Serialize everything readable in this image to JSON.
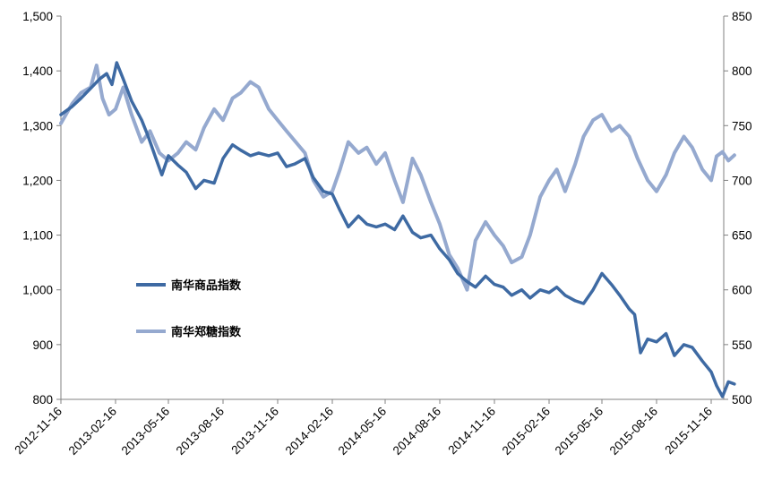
{
  "chart_data": {
    "type": "line",
    "title": "",
    "xlabel": "",
    "ylabel": "",
    "x_tick_labels": [
      "2012-11-16",
      "2013-02-16",
      "2013-05-16",
      "2013-08-16",
      "2013-11-16",
      "2014-02-16",
      "2014-05-16",
      "2014-08-16",
      "2014-11-16",
      "2015-02-16",
      "2015-05-16",
      "2015-08-16",
      "2015-11-16"
    ],
    "left_axis": {
      "ylim": [
        800,
        1500
      ],
      "ticks": [
        "800",
        "900",
        "1,000",
        "1,100",
        "1,200",
        "1,300",
        "1,400",
        "1,500"
      ]
    },
    "right_axis": {
      "ylim": [
        500,
        850
      ],
      "ticks": [
        "500",
        "550",
        "600",
        "650",
        "700",
        "750",
        "800",
        "850"
      ]
    },
    "grid": false,
    "legend_placement": "center-left",
    "series": [
      {
        "name": "南华商品指数",
        "axis": "left",
        "color": "#3E6AA3",
        "points": [
          [
            "2012-11-16",
            1320
          ],
          [
            "2012-12-05",
            1335
          ],
          [
            "2012-12-20",
            1350
          ],
          [
            "2013-01-05",
            1368
          ],
          [
            "2013-01-20",
            1385
          ],
          [
            "2013-02-01",
            1395
          ],
          [
            "2013-02-10",
            1375
          ],
          [
            "2013-02-18",
            1415
          ],
          [
            "2013-03-01",
            1385
          ],
          [
            "2013-03-15",
            1345
          ],
          [
            "2013-04-01",
            1310
          ],
          [
            "2013-04-12",
            1280
          ],
          [
            "2013-04-25",
            1240
          ],
          [
            "2013-05-05",
            1210
          ],
          [
            "2013-05-16",
            1245
          ],
          [
            "2013-06-01",
            1228
          ],
          [
            "2013-06-15",
            1215
          ],
          [
            "2013-07-01",
            1185
          ],
          [
            "2013-07-15",
            1200
          ],
          [
            "2013-08-01",
            1195
          ],
          [
            "2013-08-16",
            1240
          ],
          [
            "2013-09-01",
            1265
          ],
          [
            "2013-09-15",
            1255
          ],
          [
            "2013-10-01",
            1245
          ],
          [
            "2013-10-15",
            1250
          ],
          [
            "2013-11-01",
            1245
          ],
          [
            "2013-11-16",
            1250
          ],
          [
            "2013-12-01",
            1225
          ],
          [
            "2013-12-15",
            1230
          ],
          [
            "2014-01-01",
            1240
          ],
          [
            "2014-01-15",
            1205
          ],
          [
            "2014-02-01",
            1180
          ],
          [
            "2014-02-16",
            1175
          ],
          [
            "2014-03-01",
            1145
          ],
          [
            "2014-03-15",
            1115
          ],
          [
            "2014-04-01",
            1135
          ],
          [
            "2014-04-15",
            1120
          ],
          [
            "2014-05-01",
            1115
          ],
          [
            "2014-05-16",
            1120
          ],
          [
            "2014-06-01",
            1110
          ],
          [
            "2014-06-15",
            1135
          ],
          [
            "2014-07-01",
            1105
          ],
          [
            "2014-07-15",
            1095
          ],
          [
            "2014-08-01",
            1100
          ],
          [
            "2014-08-16",
            1075
          ],
          [
            "2014-09-01",
            1055
          ],
          [
            "2014-09-15",
            1030
          ],
          [
            "2014-10-01",
            1015
          ],
          [
            "2014-10-15",
            1005
          ],
          [
            "2014-11-01",
            1025
          ],
          [
            "2014-11-16",
            1010
          ],
          [
            "2014-12-01",
            1005
          ],
          [
            "2014-12-15",
            990
          ],
          [
            "2015-01-01",
            1000
          ],
          [
            "2015-01-15",
            985
          ],
          [
            "2015-02-01",
            1000
          ],
          [
            "2015-02-16",
            995
          ],
          [
            "2015-03-01",
            1005
          ],
          [
            "2015-03-15",
            990
          ],
          [
            "2015-04-01",
            980
          ],
          [
            "2015-04-15",
            975
          ],
          [
            "2015-05-01",
            1000
          ],
          [
            "2015-05-16",
            1030
          ],
          [
            "2015-06-01",
            1010
          ],
          [
            "2015-06-15",
            990
          ],
          [
            "2015-07-01",
            965
          ],
          [
            "2015-07-10",
            955
          ],
          [
            "2015-07-20",
            885
          ],
          [
            "2015-08-01",
            910
          ],
          [
            "2015-08-16",
            905
          ],
          [
            "2015-09-01",
            920
          ],
          [
            "2015-09-15",
            880
          ],
          [
            "2015-10-01",
            900
          ],
          [
            "2015-10-15",
            895
          ],
          [
            "2015-11-01",
            870
          ],
          [
            "2015-11-16",
            850
          ],
          [
            "2015-11-25",
            825
          ],
          [
            "2015-12-05",
            805
          ],
          [
            "2015-12-15",
            832
          ],
          [
            "2015-12-25",
            828
          ]
        ]
      },
      {
        "name": "南华郑糖指数",
        "axis": "right",
        "color": "#95A9CF",
        "points": [
          [
            "2012-11-16",
            752
          ],
          [
            "2012-12-05",
            770
          ],
          [
            "2012-12-20",
            780
          ],
          [
            "2013-01-05",
            785
          ],
          [
            "2013-01-15",
            805
          ],
          [
            "2013-01-25",
            775
          ],
          [
            "2013-02-05",
            760
          ],
          [
            "2013-02-16",
            765
          ],
          [
            "2013-03-01",
            785
          ],
          [
            "2013-03-15",
            760
          ],
          [
            "2013-04-01",
            735
          ],
          [
            "2013-04-15",
            745
          ],
          [
            "2013-05-01",
            725
          ],
          [
            "2013-05-16",
            718
          ],
          [
            "2013-06-01",
            725
          ],
          [
            "2013-06-15",
            735
          ],
          [
            "2013-07-01",
            728
          ],
          [
            "2013-07-15",
            748
          ],
          [
            "2013-08-01",
            765
          ],
          [
            "2013-08-16",
            755
          ],
          [
            "2013-09-01",
            775
          ],
          [
            "2013-09-15",
            780
          ],
          [
            "2013-10-01",
            790
          ],
          [
            "2013-10-15",
            785
          ],
          [
            "2013-11-01",
            765
          ],
          [
            "2013-11-16",
            755
          ],
          [
            "2013-12-01",
            745
          ],
          [
            "2014-01-01",
            725
          ],
          [
            "2014-01-15",
            700
          ],
          [
            "2014-02-01",
            685
          ],
          [
            "2014-02-16",
            690
          ],
          [
            "2014-03-01",
            710
          ],
          [
            "2014-03-15",
            735
          ],
          [
            "2014-04-01",
            725
          ],
          [
            "2014-04-15",
            730
          ],
          [
            "2014-05-01",
            715
          ],
          [
            "2014-05-16",
            725
          ],
          [
            "2014-06-01",
            700
          ],
          [
            "2014-06-15",
            680
          ],
          [
            "2014-07-01",
            720
          ],
          [
            "2014-07-15",
            705
          ],
          [
            "2014-08-01",
            680
          ],
          [
            "2014-08-16",
            660
          ],
          [
            "2014-09-01",
            632
          ],
          [
            "2014-09-15",
            620
          ],
          [
            "2014-10-01",
            600
          ],
          [
            "2014-10-15",
            645
          ],
          [
            "2014-11-01",
            662
          ],
          [
            "2014-11-16",
            650
          ],
          [
            "2014-12-01",
            640
          ],
          [
            "2014-12-15",
            625
          ],
          [
            "2015-01-01",
            630
          ],
          [
            "2015-01-15",
            650
          ],
          [
            "2015-02-01",
            685
          ],
          [
            "2015-02-16",
            700
          ],
          [
            "2015-03-01",
            710
          ],
          [
            "2015-03-15",
            690
          ],
          [
            "2015-04-01",
            715
          ],
          [
            "2015-04-15",
            740
          ],
          [
            "2015-05-01",
            755
          ],
          [
            "2015-05-16",
            760
          ],
          [
            "2015-06-01",
            745
          ],
          [
            "2015-06-15",
            750
          ],
          [
            "2015-07-01",
            740
          ],
          [
            "2015-07-15",
            720
          ],
          [
            "2015-08-01",
            700
          ],
          [
            "2015-08-16",
            690
          ],
          [
            "2015-09-01",
            705
          ],
          [
            "2015-09-15",
            725
          ],
          [
            "2015-10-01",
            740
          ],
          [
            "2015-10-15",
            730
          ],
          [
            "2015-11-01",
            710
          ],
          [
            "2015-11-16",
            700
          ],
          [
            "2015-11-25",
            722
          ],
          [
            "2015-12-05",
            726
          ],
          [
            "2015-12-15",
            718
          ],
          [
            "2015-12-25",
            723
          ]
        ]
      }
    ]
  }
}
